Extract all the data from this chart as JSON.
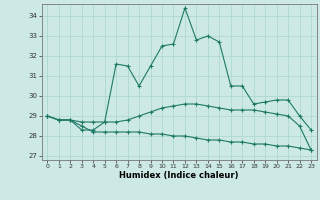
{
  "xlabel": "Humidex (Indice chaleur)",
  "xlim": [
    -0.5,
    23.5
  ],
  "ylim": [
    26.8,
    34.6
  ],
  "yticks": [
    27,
    28,
    29,
    30,
    31,
    32,
    33,
    34
  ],
  "xticks": [
    0,
    1,
    2,
    3,
    4,
    5,
    6,
    7,
    8,
    9,
    10,
    11,
    12,
    13,
    14,
    15,
    16,
    17,
    18,
    19,
    20,
    21,
    22,
    23
  ],
  "bg_color": "#cce9e5",
  "grid_color": "#aad4cf",
  "line_color": "#1e7a65",
  "series1": [
    29.0,
    28.8,
    28.8,
    28.3,
    28.3,
    28.7,
    31.6,
    31.5,
    30.5,
    31.5,
    32.5,
    32.6,
    34.4,
    32.8,
    33.0,
    32.7,
    30.5,
    30.5,
    29.6,
    29.7,
    29.8,
    29.8,
    29.0,
    28.3
  ],
  "series2": [
    29.0,
    28.8,
    28.8,
    28.7,
    28.7,
    28.7,
    28.7,
    28.8,
    29.0,
    29.2,
    29.4,
    29.5,
    29.6,
    29.6,
    29.5,
    29.4,
    29.3,
    29.3,
    29.3,
    29.2,
    29.1,
    29.0,
    28.5,
    27.3
  ],
  "series3": [
    29.0,
    28.8,
    28.8,
    28.5,
    28.2,
    28.2,
    28.2,
    28.2,
    28.2,
    28.1,
    28.1,
    28.0,
    28.0,
    27.9,
    27.8,
    27.8,
    27.7,
    27.7,
    27.6,
    27.6,
    27.5,
    27.5,
    27.4,
    27.3
  ]
}
